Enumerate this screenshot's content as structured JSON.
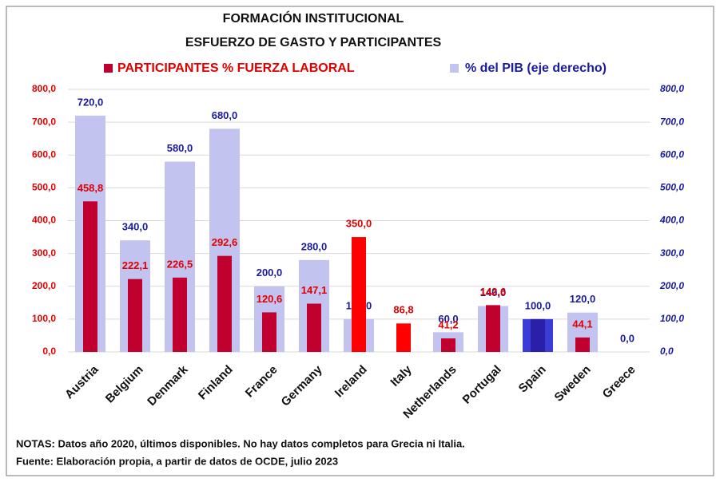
{
  "chart_data": {
    "type": "bar",
    "title": "FORMACIÓN INSTITUCIONAL",
    "subtitle": "ESFUERZO DE GASTO Y PARTICIPANTES",
    "categories": [
      "Austria",
      "Belgium",
      "Denmark",
      "Finland",
      "France",
      "Germany",
      "Ireland",
      "Italy",
      "Netherlands",
      "Portugal",
      "Spain",
      "Sweden",
      "Greece"
    ],
    "series": [
      {
        "name": "% del PIB (eje derecho)",
        "color": "#c3c3f0",
        "axis": "y2",
        "colors": [
          null,
          null,
          null,
          null,
          null,
          null,
          null,
          null,
          null,
          null,
          "#3b3bd6",
          null,
          null
        ],
        "values": [
          720,
          340,
          580,
          680,
          200,
          280,
          100,
          null,
          60,
          140,
          100,
          120,
          0
        ],
        "value_labels": [
          "720,0",
          "340,0",
          "580,0",
          "680,0",
          "200,0",
          "280,0",
          "100,0",
          null,
          "60,0",
          "140,0",
          "100,0",
          "120,0",
          "0,0"
        ]
      },
      {
        "name": "PARTICIPANTES % FUERZA LABORAL",
        "color": "#c0002f",
        "colors": [
          null,
          null,
          null,
          null,
          null,
          null,
          "#ff0000",
          "#ff0000",
          null,
          null,
          "#2a1fa8",
          null,
          null
        ],
        "values": [
          458.8,
          222.1,
          226.5,
          292.6,
          120.6,
          147.1,
          350.0,
          86.8,
          41.2,
          142.6,
          100.0,
          44.1,
          null
        ],
        "value_labels": [
          "458,8",
          "222,1",
          "226,5",
          "292,6",
          "120,6",
          "147,1",
          "350,0",
          "86,8",
          "41,2",
          "142,6",
          null,
          "44,1",
          null
        ]
      }
    ],
    "ylim": [
      0,
      800
    ],
    "yticks": [
      {
        "value": 0,
        "label": "0,0"
      },
      {
        "value": 100,
        "label": "100,0"
      },
      {
        "value": 200,
        "label": "200,0"
      },
      {
        "value": 300,
        "label": "300,0"
      },
      {
        "value": 400,
        "label": "400,0"
      },
      {
        "value": 500,
        "label": "500,0"
      },
      {
        "value": 600,
        "label": "600,0"
      },
      {
        "value": 700,
        "label": "700,0"
      },
      {
        "value": 800,
        "label": "800,0"
      }
    ],
    "y2lim": [
      0,
      800
    ],
    "y2ticks": [
      {
        "value": 0,
        "label": "0,0"
      },
      {
        "value": 100,
        "label": "100,0"
      },
      {
        "value": 200,
        "label": "200,0"
      },
      {
        "value": 300,
        "label": "300,0"
      },
      {
        "value": 400,
        "label": "400,0"
      },
      {
        "value": 500,
        "label": "500,0"
      },
      {
        "value": 600,
        "label": "600,0"
      },
      {
        "value": 700,
        "label": "700,0"
      },
      {
        "value": 800,
        "label": "800,0"
      }
    ],
    "grid": true,
    "notes": [
      "NOTAS: Datos año 2020, últimos disponibles. No hay datos completos para Grecia ni Italia.",
      "Fuente: Elaboración propia, a partir de datos de OCDE, julio 2023"
    ]
  }
}
